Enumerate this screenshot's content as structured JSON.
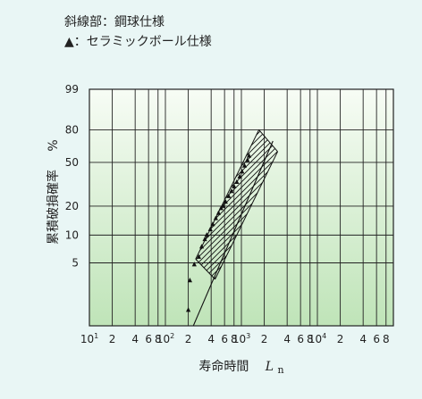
{
  "legend": {
    "hatch_label": "斜線部：鋼球仕様",
    "triangle_label": "▲：セラミックボール仕様"
  },
  "chart_data": {
    "type": "scatter",
    "xlabel": "寿命時間",
    "xlabel_symbol": "L",
    "xlabel_subscript": "n",
    "ylabel": "累積破損確率",
    "ylabel_unit": "%",
    "x_scale": "log",
    "y_scale": "weibull",
    "xlim": [
      10,
      100000
    ],
    "ylim": [
      1,
      99
    ],
    "x_ticks": [
      {
        "value": 10,
        "base": "10",
        "exp": "1"
      },
      {
        "value": 20,
        "label": "2"
      },
      {
        "value": 40,
        "label": "4"
      },
      {
        "value": 60,
        "label": "6"
      },
      {
        "value": 80,
        "label": "8"
      },
      {
        "value": 100,
        "base": "10",
        "exp": "2"
      },
      {
        "value": 200,
        "label": "2"
      },
      {
        "value": 400,
        "label": "4"
      },
      {
        "value": 600,
        "label": "6"
      },
      {
        "value": 800,
        "label": "8"
      },
      {
        "value": 1000,
        "base": "10",
        "exp": "3"
      },
      {
        "value": 2000,
        "label": "2"
      },
      {
        "value": 4000,
        "label": "4"
      },
      {
        "value": 6000,
        "label": "6"
      },
      {
        "value": 8000,
        "label": "8"
      },
      {
        "value": 10000,
        "base": "10",
        "exp": "4"
      },
      {
        "value": 20000,
        "label": "2"
      },
      {
        "value": 40000,
        "label": "4"
      },
      {
        "value": 60000,
        "label": "6"
      },
      {
        "value": 80000,
        "label": "8"
      }
    ],
    "y_ticks": [
      {
        "value": 99,
        "label": "99"
      },
      {
        "value": 80,
        "label": "80"
      },
      {
        "value": 50,
        "label": "50"
      },
      {
        "value": 20,
        "label": "20"
      },
      {
        "value": 10,
        "label": "10"
      },
      {
        "value": 5,
        "label": "5"
      }
    ],
    "hatched_band": {
      "name": "斜線部：鋼球仕様",
      "lower": [
        [
          450,
          3.3
        ],
        [
          3000,
          60
        ]
      ],
      "upper": [
        [
          250,
          5.5
        ],
        [
          1700,
          80
        ]
      ]
    },
    "fit_line": [
      [
        180,
        0.6
      ],
      [
        2600,
        70
      ]
    ],
    "series": [
      {
        "name": "▲：セラミックボール仕様",
        "marker": "triangle",
        "points": [
          [
            200,
            1.5
          ],
          [
            210,
            3.2
          ],
          [
            240,
            4.8
          ],
          [
            275,
            5.8
          ],
          [
            300,
            7.5
          ],
          [
            330,
            9
          ],
          [
            350,
            10
          ],
          [
            390,
            11.5
          ],
          [
            420,
            13
          ],
          [
            460,
            15
          ],
          [
            500,
            17
          ],
          [
            540,
            19
          ],
          [
            580,
            20
          ],
          [
            620,
            22
          ],
          [
            680,
            25
          ],
          [
            740,
            28
          ],
          [
            800,
            31
          ],
          [
            870,
            34
          ],
          [
            950,
            38
          ],
          [
            1020,
            42
          ],
          [
            1100,
            47
          ],
          [
            1200,
            52
          ],
          [
            1260,
            56
          ]
        ]
      }
    ],
    "grid": true,
    "colors": {
      "background": "#e9f6f5",
      "plot_top": "#f7fcf5",
      "plot_bottom": "#bfe4b8",
      "grid": "#222222",
      "marks": "#111111"
    }
  }
}
